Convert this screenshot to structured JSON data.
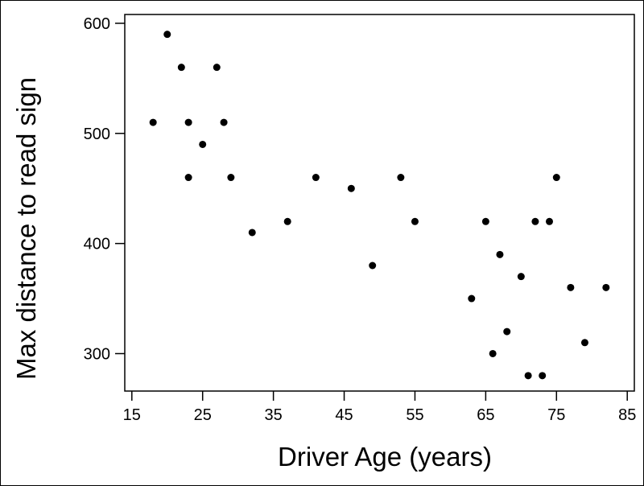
{
  "chart_data": {
    "type": "scatter",
    "xlabel": "Driver Age (years)",
    "ylabel": "Max distance to read sign",
    "xlim": [
      14,
      86
    ],
    "ylim": [
      266,
      608
    ],
    "x_ticks": [
      15,
      25,
      35,
      45,
      55,
      65,
      75,
      85
    ],
    "y_ticks": [
      300,
      400,
      500,
      600
    ],
    "grid": false,
    "points": [
      {
        "x": 18,
        "y": 510
      },
      {
        "x": 20,
        "y": 590
      },
      {
        "x": 22,
        "y": 560
      },
      {
        "x": 23,
        "y": 510
      },
      {
        "x": 23,
        "y": 460
      },
      {
        "x": 25,
        "y": 490
      },
      {
        "x": 27,
        "y": 560
      },
      {
        "x": 28,
        "y": 510
      },
      {
        "x": 29,
        "y": 460
      },
      {
        "x": 32,
        "y": 410
      },
      {
        "x": 37,
        "y": 420
      },
      {
        "x": 41,
        "y": 460
      },
      {
        "x": 46,
        "y": 450
      },
      {
        "x": 49,
        "y": 380
      },
      {
        "x": 53,
        "y": 460
      },
      {
        "x": 55,
        "y": 420
      },
      {
        "x": 63,
        "y": 350
      },
      {
        "x": 65,
        "y": 420
      },
      {
        "x": 66,
        "y": 300
      },
      {
        "x": 67,
        "y": 390
      },
      {
        "x": 68,
        "y": 320
      },
      {
        "x": 70,
        "y": 370
      },
      {
        "x": 71,
        "y": 280
      },
      {
        "x": 72,
        "y": 420
      },
      {
        "x": 73,
        "y": 280
      },
      {
        "x": 74,
        "y": 420
      },
      {
        "x": 75,
        "y": 460
      },
      {
        "x": 77,
        "y": 360
      },
      {
        "x": 79,
        "y": 310
      },
      {
        "x": 82,
        "y": 360
      }
    ],
    "marker_color": "#000000"
  }
}
